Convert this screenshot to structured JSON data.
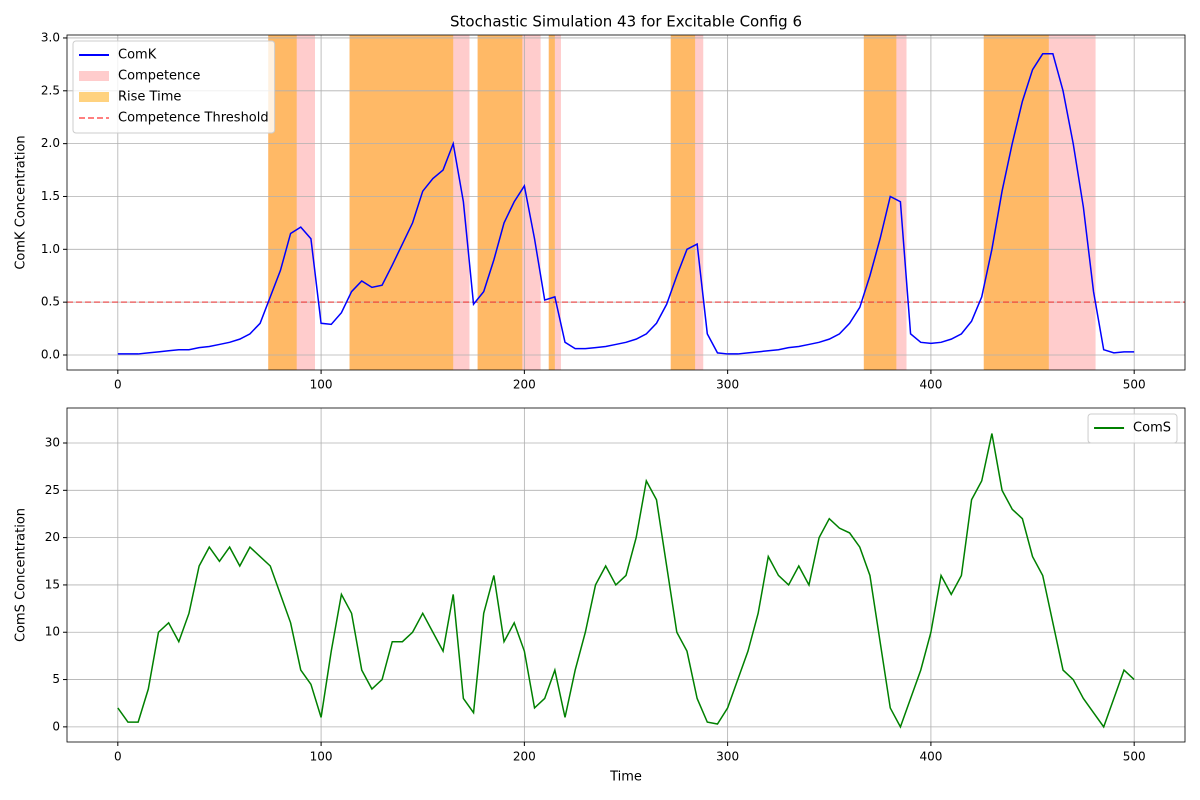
{
  "chart_data": [
    {
      "type": "line",
      "title": "Stochastic Simulation 43 for Excitable Config 6",
      "ylabel": "ComK Concentration",
      "x": [
        0,
        5,
        10,
        15,
        20,
        25,
        30,
        35,
        40,
        45,
        50,
        55,
        60,
        65,
        70,
        75,
        80,
        85,
        90,
        95,
        100,
        105,
        110,
        115,
        120,
        125,
        130,
        135,
        140,
        145,
        150,
        155,
        160,
        165,
        170,
        175,
        180,
        185,
        190,
        195,
        200,
        205,
        210,
        215,
        220,
        225,
        230,
        235,
        240,
        245,
        250,
        255,
        260,
        265,
        270,
        275,
        280,
        285,
        290,
        295,
        300,
        305,
        310,
        315,
        320,
        325,
        330,
        335,
        340,
        345,
        350,
        355,
        360,
        365,
        370,
        375,
        380,
        385,
        390,
        395,
        400,
        405,
        410,
        415,
        420,
        425,
        430,
        435,
        440,
        445,
        450,
        455,
        460,
        465,
        470,
        475,
        480,
        485,
        490,
        495,
        500
      ],
      "series": [
        {
          "name": "ComK",
          "color": "blue",
          "values": [
            0.01,
            0.01,
            0.01,
            0.02,
            0.03,
            0.04,
            0.05,
            0.05,
            0.07,
            0.08,
            0.1,
            0.12,
            0.15,
            0.2,
            0.3,
            0.55,
            0.8,
            1.15,
            1.21,
            1.1,
            0.3,
            0.29,
            0.4,
            0.6,
            0.7,
            0.64,
            0.66,
            0.85,
            1.05,
            1.25,
            1.55,
            1.67,
            1.75,
            2.0,
            1.45,
            0.48,
            0.6,
            0.9,
            1.25,
            1.45,
            1.6,
            1.1,
            0.52,
            0.55,
            0.12,
            0.06,
            0.06,
            0.07,
            0.08,
            0.1,
            0.12,
            0.15,
            0.2,
            0.3,
            0.48,
            0.75,
            1.0,
            1.05,
            0.2,
            0.02,
            0.01,
            0.01,
            0.02,
            0.03,
            0.04,
            0.05,
            0.07,
            0.08,
            0.1,
            0.12,
            0.15,
            0.2,
            0.3,
            0.45,
            0.75,
            1.1,
            1.5,
            1.45,
            0.2,
            0.12,
            0.11,
            0.12,
            0.15,
            0.2,
            0.32,
            0.55,
            1.0,
            1.55,
            2.0,
            2.4,
            2.7,
            2.85,
            2.85,
            2.5,
            2.0,
            1.4,
            0.6,
            0.05,
            0.02,
            0.03,
            0.03
          ]
        }
      ],
      "spans": [
        {
          "name": "Competence",
          "color": "red",
          "alpha": 0.2,
          "ranges": [
            [
              74,
              97
            ],
            [
              114,
              173
            ],
            [
              177,
              208
            ],
            [
              212,
              218
            ],
            [
              272,
              288
            ],
            [
              367,
              388
            ],
            [
              426,
              481
            ]
          ]
        },
        {
          "name": "Rise Time",
          "color": "orange",
          "alpha": 0.5,
          "ranges": [
            [
              74,
              88
            ],
            [
              114,
              165
            ],
            [
              177,
              199
            ],
            [
              212,
              215
            ],
            [
              272,
              284
            ],
            [
              367,
              383
            ],
            [
              426,
              458
            ]
          ]
        }
      ],
      "hlines": [
        {
          "name": "Competence Threshold",
          "value": 0.5,
          "color": "red",
          "alpha": 0.5,
          "style": "dashed"
        }
      ],
      "xlim": [
        -25,
        525
      ],
      "ylim": [
        -0.142,
        3.028
      ],
      "xticks": [
        0,
        100,
        200,
        300,
        400,
        500
      ],
      "yticks": [
        {
          "value": 0,
          "label": "0.0"
        },
        0.5,
        {
          "value": 1,
          "label": "1.0"
        },
        1.5,
        {
          "value": 2,
          "label": "2.0"
        },
        2.5,
        {
          "value": 3,
          "label": "3.0"
        }
      ],
      "grid": true,
      "legend": "upper left"
    },
    {
      "type": "line",
      "xlabel": "Time",
      "ylabel": "ComS Concentration",
      "x": [
        0,
        5,
        10,
        15,
        20,
        25,
        30,
        35,
        40,
        45,
        50,
        55,
        60,
        65,
        70,
        75,
        80,
        85,
        90,
        95,
        100,
        105,
        110,
        115,
        120,
        125,
        130,
        135,
        140,
        145,
        150,
        155,
        160,
        165,
        170,
        175,
        180,
        185,
        190,
        195,
        200,
        205,
        210,
        215,
        220,
        225,
        230,
        235,
        240,
        245,
        250,
        255,
        260,
        265,
        270,
        275,
        280,
        285,
        290,
        295,
        300,
        305,
        310,
        315,
        320,
        325,
        330,
        335,
        340,
        345,
        350,
        355,
        360,
        365,
        370,
        375,
        380,
        385,
        390,
        395,
        400,
        405,
        410,
        415,
        420,
        425,
        430,
        435,
        440,
        445,
        450,
        455,
        460,
        465,
        470,
        475,
        480,
        485,
        490,
        495,
        500
      ],
      "series": [
        {
          "name": "ComS",
          "color": "green",
          "values": [
            2,
            0.5,
            0.5,
            4,
            10,
            11,
            9,
            12,
            17,
            19,
            17.5,
            19,
            17,
            19,
            18,
            17,
            14,
            11,
            6,
            4.5,
            1,
            8,
            14,
            12,
            6,
            4,
            5,
            9,
            9,
            10,
            12,
            10,
            8,
            14,
            3,
            1.5,
            12,
            16,
            9,
            11,
            8,
            2,
            3,
            6,
            1,
            6,
            10,
            15,
            17,
            15,
            16,
            20,
            26,
            24,
            17,
            10,
            8,
            3,
            0.5,
            0.3,
            2,
            5,
            8,
            12,
            18,
            16,
            15,
            17,
            15,
            20,
            22,
            21,
            20.5,
            19,
            16,
            9,
            2,
            0,
            3,
            6,
            10,
            16,
            14,
            16,
            24,
            26,
            31,
            25,
            23,
            22,
            18,
            16,
            11,
            6,
            5,
            3,
            1.5,
            0,
            3,
            6,
            5
          ]
        }
      ],
      "xlim": [
        -25,
        525
      ],
      "ylim": [
        -1.6,
        33.7
      ],
      "xticks": [
        0,
        100,
        200,
        300,
        400,
        500
      ],
      "yticks": [
        0,
        5,
        10,
        15,
        20,
        25,
        30
      ],
      "grid": true,
      "legend": "upper right"
    }
  ]
}
